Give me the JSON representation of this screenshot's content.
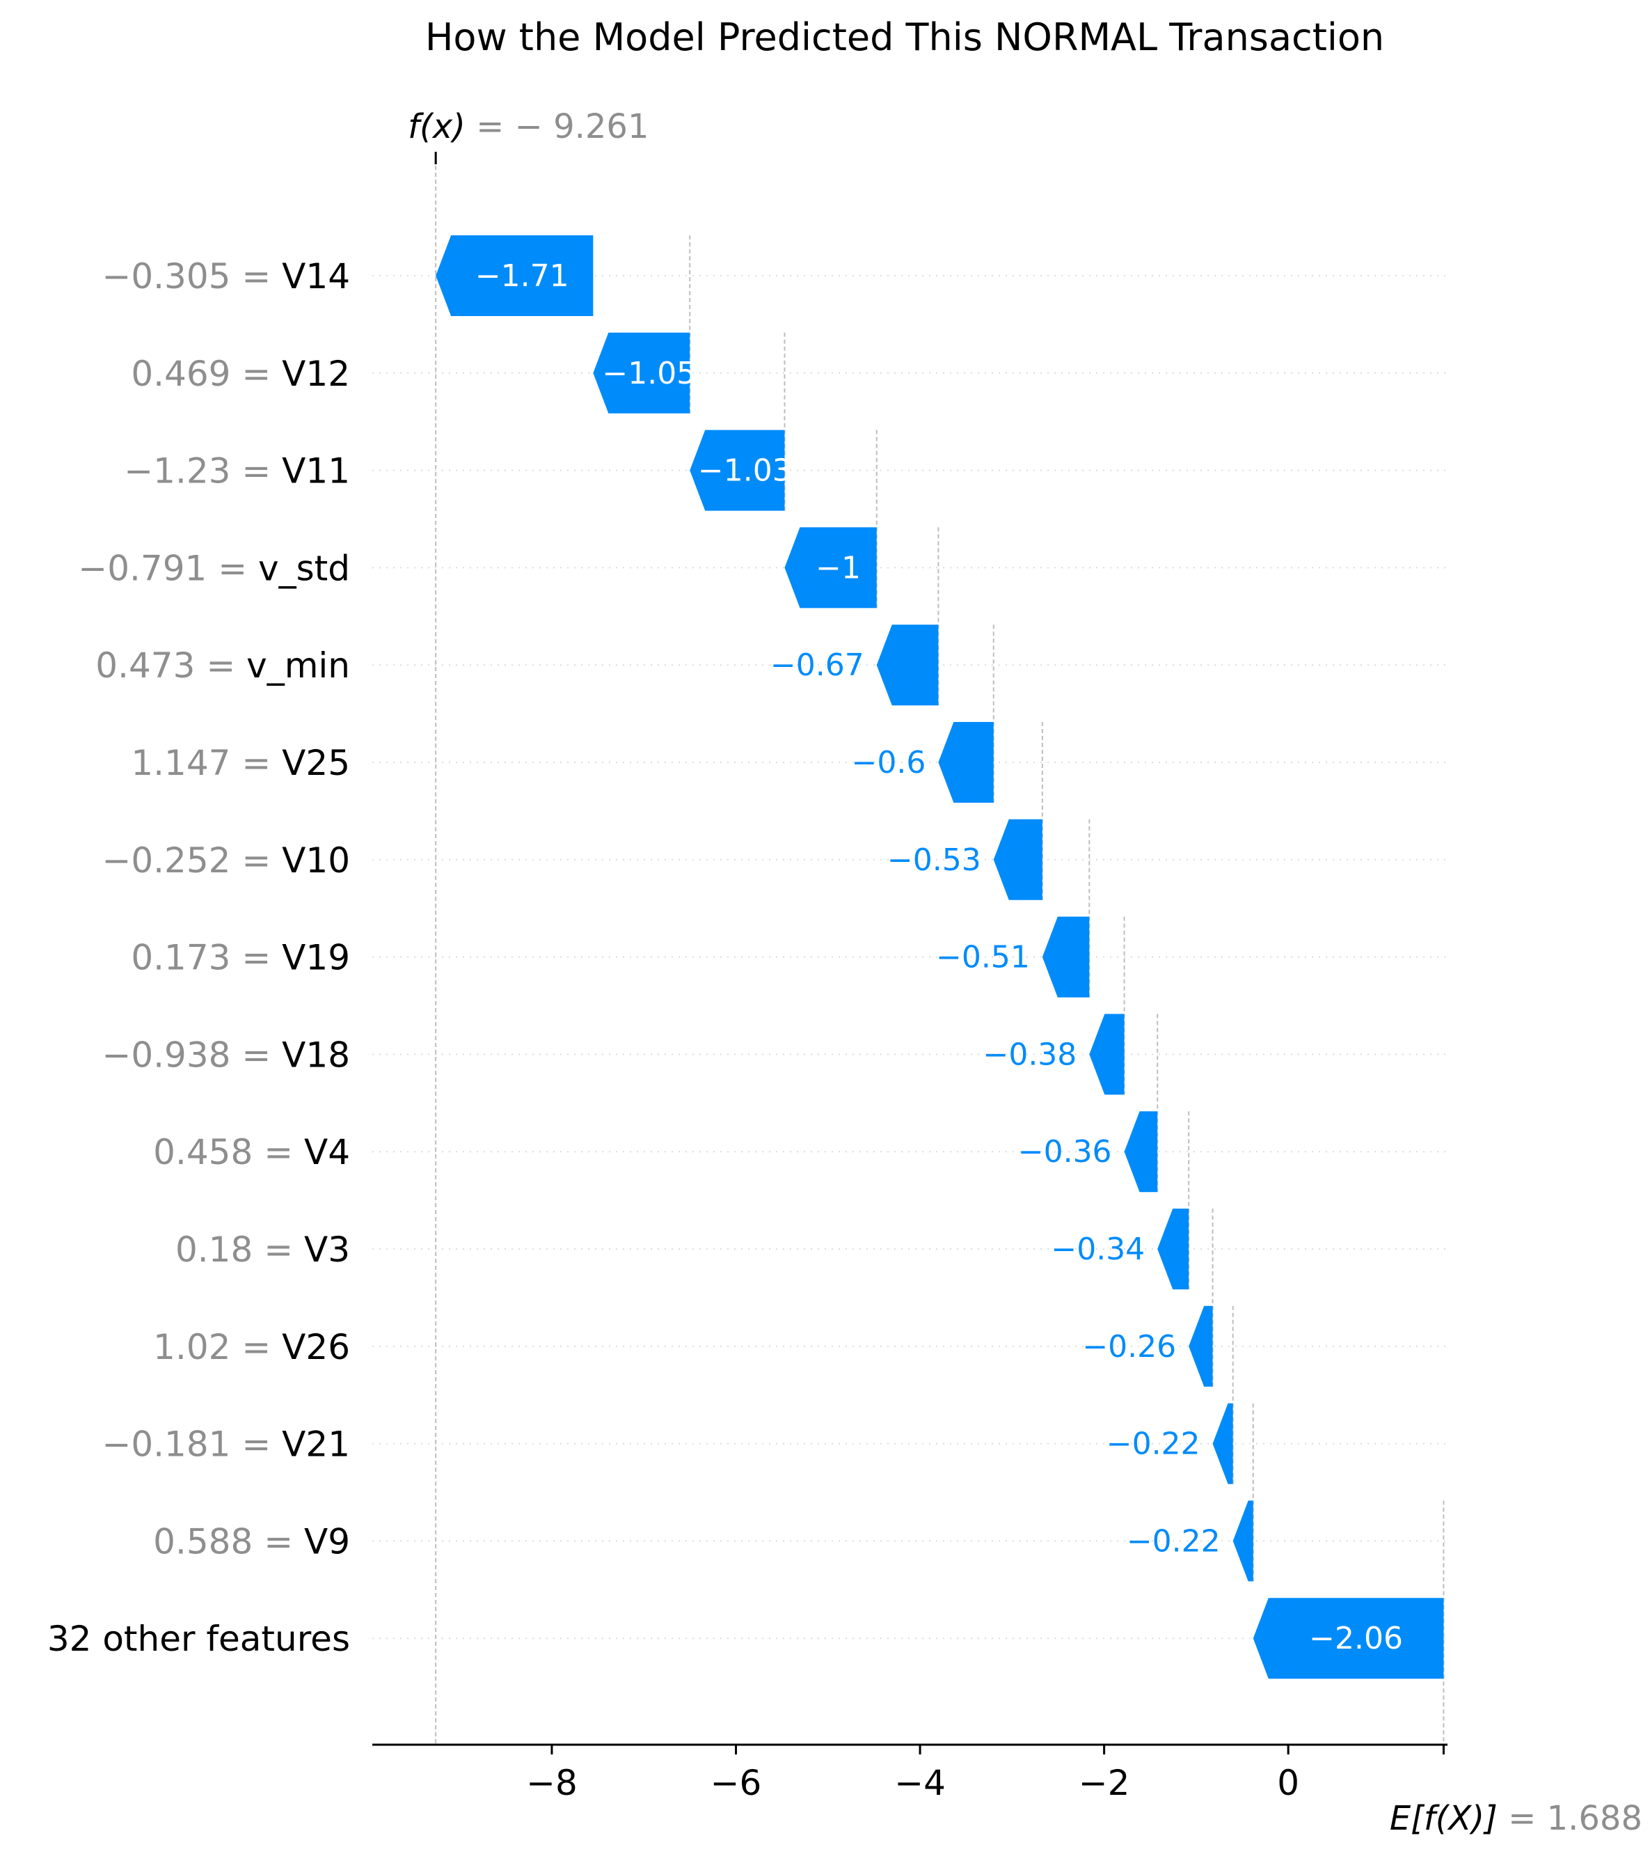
{
  "chart_data": {
    "type": "bar",
    "subtype": "shap-waterfall",
    "title": "How the Model Predicted This NORMAL Transaction",
    "fx": {
      "label": "f(x)",
      "value_text": "= − 9.261",
      "value": -9.261
    },
    "expected": {
      "label": "E[f(X)]",
      "value_text": "= 1.688",
      "value": 1.688
    },
    "xlim": [
      -9.95,
      1.73
    ],
    "xticks": [
      {
        "value": -8,
        "label": "−8"
      },
      {
        "value": -6,
        "label": "−6"
      },
      {
        "value": -4,
        "label": "−4"
      },
      {
        "value": -2,
        "label": "−2"
      },
      {
        "value": 0,
        "label": "0"
      }
    ],
    "bar_color": "#008bfb",
    "features": [
      {
        "value_text": "−0.305 =",
        "name": "V14",
        "contribution": -1.71,
        "label": "−1.71",
        "start": -7.551,
        "end": -9.261
      },
      {
        "value_text": "0.469 =",
        "name": "V12",
        "contribution": -1.05,
        "label": "−1.05",
        "start": -6.501,
        "end": -7.551
      },
      {
        "value_text": "−1.23 =",
        "name": "V11",
        "contribution": -1.03,
        "label": "−1.03",
        "start": -5.471,
        "end": -6.501
      },
      {
        "value_text": "−0.791 =",
        "name": "v_std",
        "contribution": -1.0,
        "label": "−1",
        "start": -4.471,
        "end": -5.471
      },
      {
        "value_text": "0.473 =",
        "name": "v_min",
        "contribution": -0.67,
        "label": "−0.67",
        "start": -3.801,
        "end": -4.471
      },
      {
        "value_text": "1.147 =",
        "name": "V25",
        "contribution": -0.6,
        "label": "−0.6",
        "start": -3.201,
        "end": -3.801
      },
      {
        "value_text": "−0.252 =",
        "name": "V10",
        "contribution": -0.53,
        "label": "−0.53",
        "start": -2.671,
        "end": -3.201
      },
      {
        "value_text": "0.173 =",
        "name": "V19",
        "contribution": -0.51,
        "label": "−0.51",
        "start": -2.161,
        "end": -2.671
      },
      {
        "value_text": "−0.938 =",
        "name": "V18",
        "contribution": -0.38,
        "label": "−0.38",
        "start": -1.781,
        "end": -2.161
      },
      {
        "value_text": "0.458 =",
        "name": "V4",
        "contribution": -0.36,
        "label": "−0.36",
        "start": -1.421,
        "end": -1.781
      },
      {
        "value_text": "0.18 =",
        "name": "V3",
        "contribution": -0.34,
        "label": "−0.34",
        "start": -1.081,
        "end": -1.421
      },
      {
        "value_text": "1.02 =",
        "name": "V26",
        "contribution": -0.26,
        "label": "−0.26",
        "start": -0.821,
        "end": -1.081
      },
      {
        "value_text": "−0.181 =",
        "name": "V21",
        "contribution": -0.22,
        "label": "−0.22",
        "start": -0.601,
        "end": -0.821
      },
      {
        "value_text": "0.588 =",
        "name": "V9",
        "contribution": -0.22,
        "label": "−0.22",
        "start": -0.381,
        "end": -0.601
      },
      {
        "value_text": "",
        "name": "32 other features",
        "contribution": -2.06,
        "label": "−2.06",
        "start": 1.688,
        "end": -0.381
      }
    ],
    "grid": "dotted horizontal row guides"
  }
}
